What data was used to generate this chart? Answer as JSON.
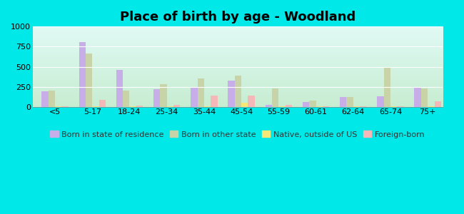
{
  "categories": [
    "<5",
    "5-17",
    "18-24",
    "25-34",
    "35-44",
    "45-54",
    "55-59",
    "60-61",
    "62-64",
    "65-74",
    "75+"
  ],
  "series": {
    "Born in state of residence": [
      190,
      810,
      460,
      220,
      240,
      325,
      20,
      55,
      120,
      130,
      245
    ],
    "Born in other state": [
      205,
      665,
      200,
      285,
      350,
      390,
      225,
      80,
      125,
      485,
      230
    ],
    "Native, outside of US": [
      5,
      10,
      5,
      10,
      10,
      50,
      5,
      5,
      5,
      5,
      5
    ],
    "Foreign-born": [
      10,
      90,
      15,
      20,
      140,
      140,
      20,
      10,
      10,
      10,
      70
    ]
  },
  "colors": {
    "Born in state of residence": "#c8aee8",
    "Born in other state": "#c8d4a8",
    "Native, outside of US": "#f5e878",
    "Foreign-born": "#f5b8b8"
  },
  "title": "Place of birth by age - Woodland",
  "ylim": [
    0,
    1000
  ],
  "yticks": [
    0,
    250,
    500,
    750,
    1000
  ],
  "outer_bg": "#00e8e8",
  "bar_width": 0.18,
  "title_fontsize": 13,
  "legend_fontsize": 8,
  "tick_fontsize": 8
}
